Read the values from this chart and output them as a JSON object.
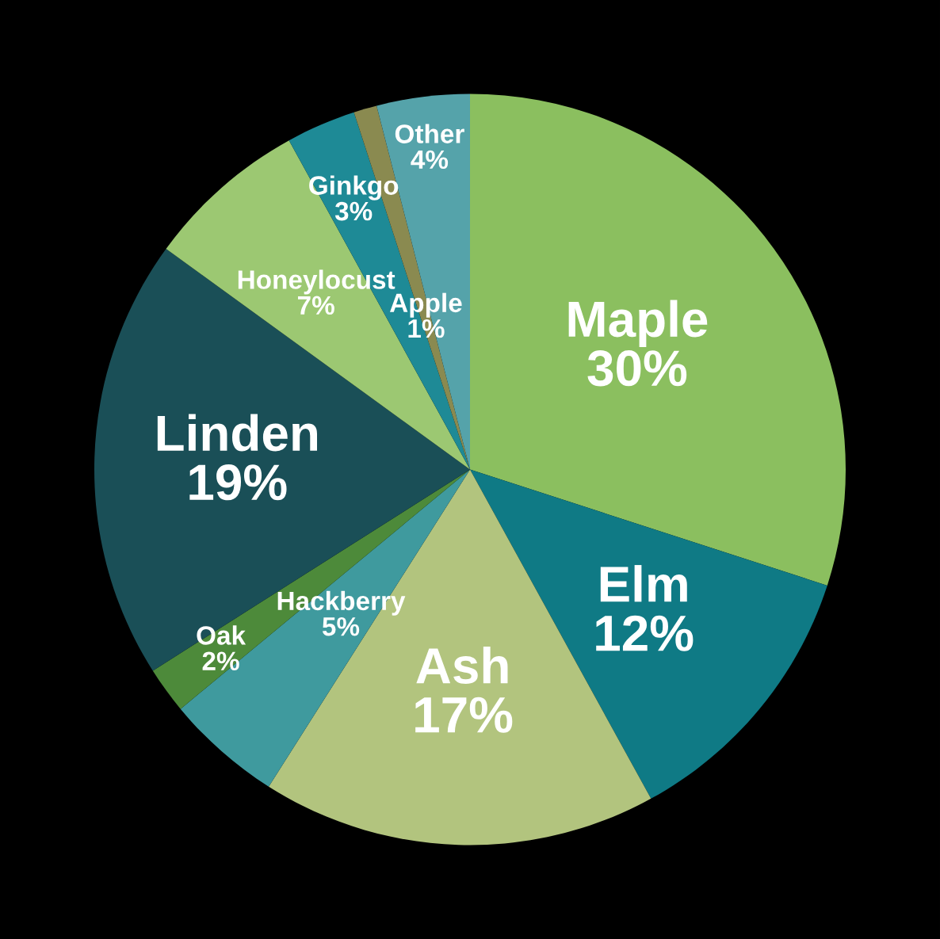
{
  "chart_data": {
    "type": "pie",
    "categories": [
      "Maple",
      "Elm",
      "Ash",
      "Hackberry",
      "Oak",
      "Linden",
      "Honeylocust",
      "Ginkgo",
      "Apple",
      "Other"
    ],
    "values": [
      30,
      12,
      17,
      5,
      2,
      19,
      7,
      3,
      1,
      4
    ],
    "colors": [
      "#8bbf5f",
      "#0f7a85",
      "#b2c47e",
      "#3f9a9e",
      "#4d8a3a",
      "#1a4f57",
      "#9cc872",
      "#1e8a96",
      "#8a8a50",
      "#55a3aa"
    ],
    "value_labels": [
      "30%",
      "12%",
      "17%",
      "5%",
      "2%",
      "19%",
      "7%",
      "3%",
      "1%",
      "4%"
    ]
  }
}
